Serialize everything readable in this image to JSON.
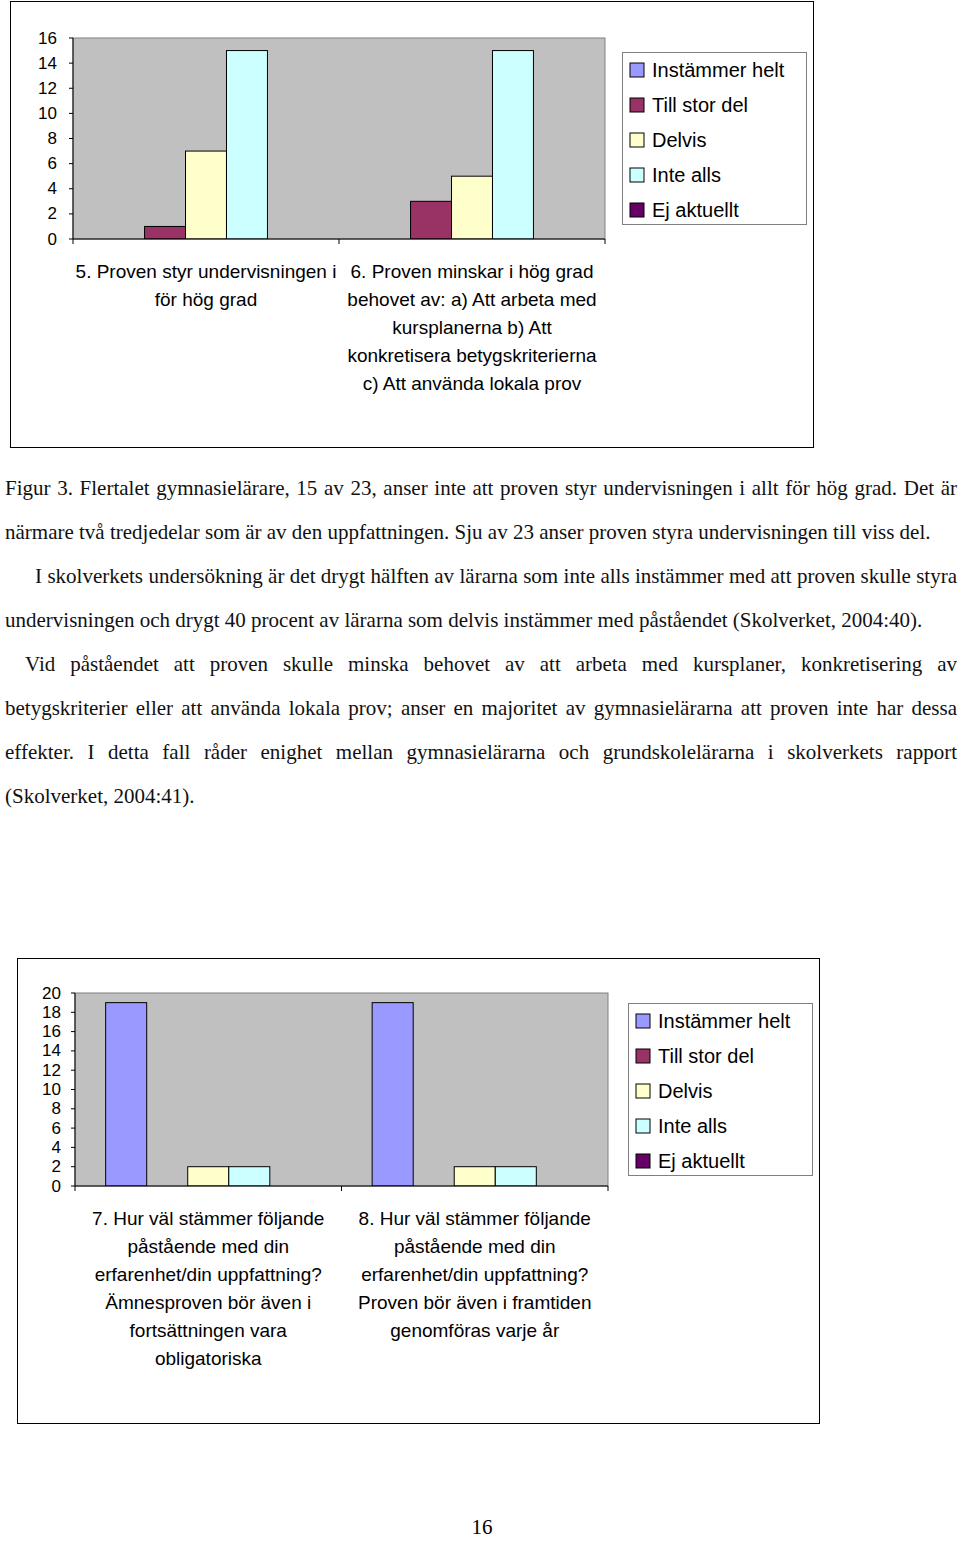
{
  "chart_data": [
    {
      "type": "bar",
      "categories": [
        "5. Proven styr undervisningen i för hög grad",
        "6. Proven minskar i hög grad behovet av: a) Att arbeta med kursplanerna b) Att konkretisera betygskriterierna c) Att använda lokala prov"
      ],
      "series": [
        {
          "name": "Instämmer helt",
          "color": "#9999ff",
          "values": [
            0,
            0
          ]
        },
        {
          "name": "Till stor del",
          "color": "#993366",
          "values": [
            1,
            3
          ]
        },
        {
          "name": "Delvis",
          "color": "#ffffcc",
          "values": [
            7,
            5
          ]
        },
        {
          "name": "Inte alls",
          "color": "#ccffff",
          "values": [
            15,
            15
          ]
        },
        {
          "name": "Ej aktuellt",
          "color": "#660066",
          "values": [
            0,
            0
          ]
        }
      ],
      "ylim": [
        0,
        16
      ],
      "yticks": [
        0,
        2,
        4,
        6,
        8,
        10,
        12,
        14,
        16
      ],
      "grid": false,
      "legend": "right"
    },
    {
      "type": "bar",
      "categories": [
        "7. Hur väl stämmer följande påstående med din erfarenhet/din uppfattning? Ämnesproven bör även i fortsättningen vara obligatoriska",
        "8. Hur väl stämmer följande påstående med din erfarenhet/din uppfattning? Proven bör även i framtiden genomföras varje år"
      ],
      "series": [
        {
          "name": "Instämmer helt",
          "color": "#9999ff",
          "values": [
            19,
            19
          ]
        },
        {
          "name": "Till stor del",
          "color": "#993366",
          "values": [
            0,
            0
          ]
        },
        {
          "name": "Delvis",
          "color": "#ffffcc",
          "values": [
            2,
            2
          ]
        },
        {
          "name": "Inte alls",
          "color": "#ccffff",
          "values": [
            2,
            2
          ]
        },
        {
          "name": "Ej aktuellt",
          "color": "#660066",
          "values": [
            0,
            0
          ]
        }
      ],
      "ylim": [
        0,
        20
      ],
      "yticks": [
        0,
        2,
        4,
        6,
        8,
        10,
        12,
        14,
        16,
        18,
        20
      ],
      "grid": false,
      "legend": "right"
    }
  ],
  "document": {
    "caption": {
      "label": "Figur 3.",
      "text": "Flertalet gymnasielärare, 15 av 23, anser inte att proven styr undervisningen i allt för hög grad. Det är närmare två tredjedelar som är av den uppfattningen. Sju av 23 anser proven styra undervisningen till viss del."
    },
    "paragraphs": [
      "I skolverkets undersökning är det drygt hälften av lärarna som inte alls instämmer med att proven skulle styra undervisningen och drygt 40 procent av lärarna som delvis instämmer med påståendet (Skolverket, 2004:40).",
      "Vid påståendet att proven skulle minska behovet av att arbeta med kursplaner, konkretisering av betygskriterier eller att använda lokala prov; anser en majoritet av gymnasielärarna att proven inte har dessa effekter. I detta fall råder enighet mellan gymnasielärarna och grundskolelärarna i skolverkets rapport (Skolverket, 2004:41)."
    ],
    "page_number": 16
  }
}
